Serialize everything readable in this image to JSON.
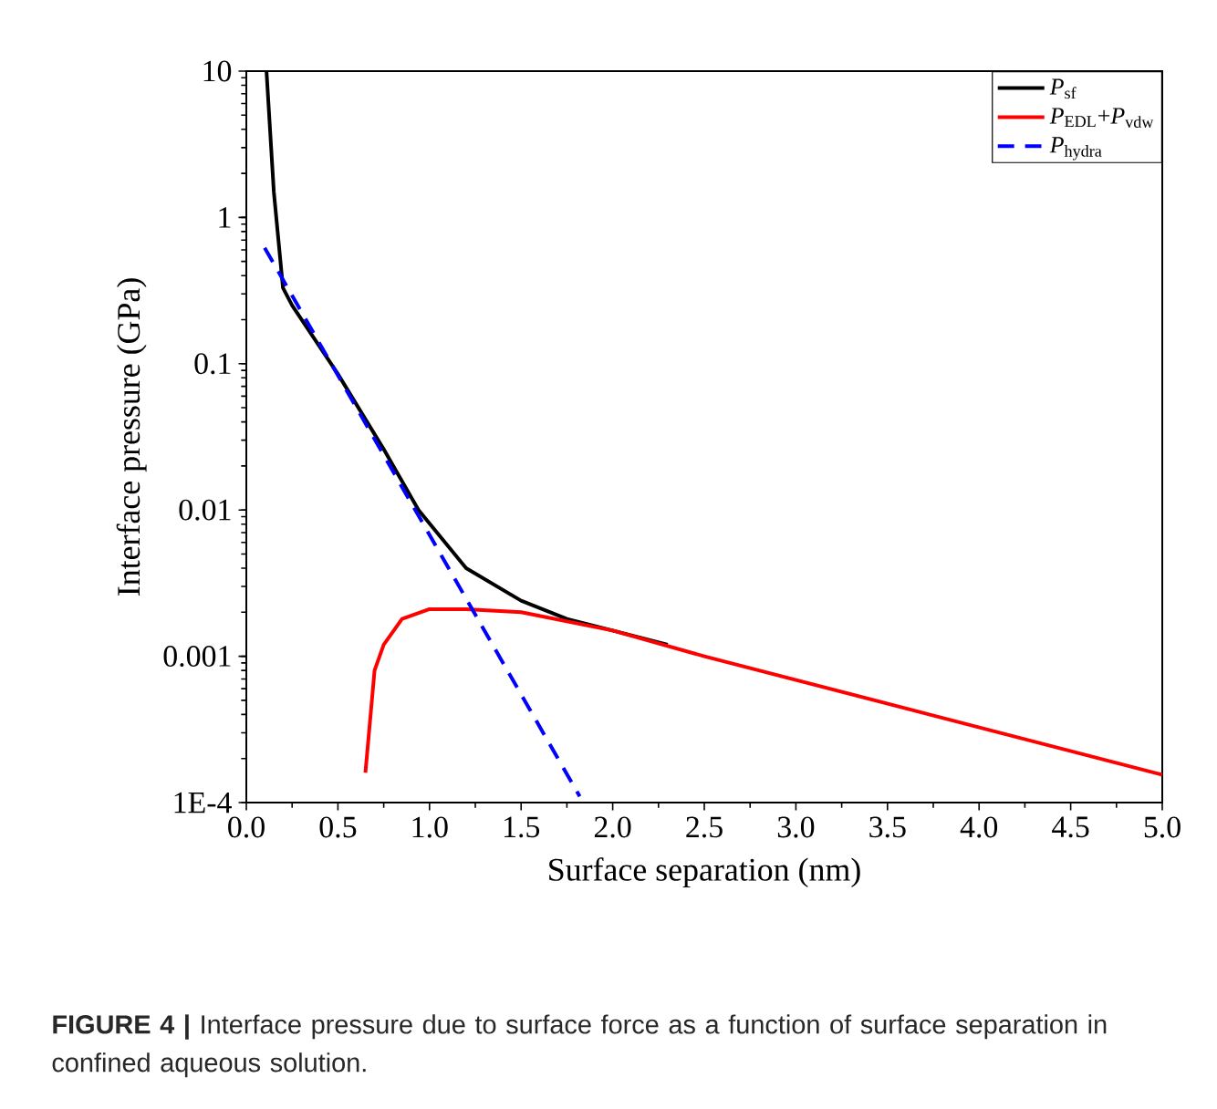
{
  "chart_data": {
    "type": "line",
    "xlabel": "Surface separation (nm)",
    "ylabel": "Interface  pressure  (GPa)",
    "series": [
      {
        "name": "*P*$_{sf}$",
        "color": "#000000",
        "line_style": "solid",
        "x": [
          0.11,
          0.15,
          0.2,
          0.25,
          0.5,
          0.75,
          0.94,
          1.2,
          1.5,
          1.75,
          2.0,
          2.3
        ],
        "values": [
          10,
          1.5,
          0.33,
          0.25,
          0.085,
          0.026,
          0.01,
          0.004,
          0.0024,
          0.0018,
          0.0015,
          0.0012
        ]
      },
      {
        "name": "*P*$_{EDL}$+*P*$_{vdw}$",
        "color": "#ff0000",
        "line_style": "solid",
        "x": [
          0.65,
          0.7,
          0.75,
          0.85,
          1.0,
          1.2,
          1.5,
          2.0,
          2.5,
          5.0
        ],
        "values": [
          0.00016,
          0.0008,
          0.0012,
          0.0018,
          0.0021,
          0.0021,
          0.002,
          0.0015,
          0.001,
          0.000155
        ]
      },
      {
        "name": "*P*$_{hydra}$",
        "color": "#0000ff",
        "line_style": "dashed",
        "x": [
          0.1,
          1.82
        ],
        "values": [
          0.62,
          0.00011
        ]
      }
    ],
    "xlim": [
      0,
      5
    ],
    "ylim": [
      0.0001,
      10
    ],
    "log": "y",
    "xticks": [
      {
        "value": 0,
        "label": "0.0"
      },
      0.5,
      {
        "value": 1,
        "label": "1.0"
      },
      1.5,
      {
        "value": 2,
        "label": "2.0"
      },
      2.5,
      {
        "value": 3,
        "label": "3.0"
      },
      3.5,
      {
        "value": 4,
        "label": "4.0"
      },
      4.5,
      {
        "value": 5,
        "label": "5.0"
      }
    ],
    "yticks": [
      {
        "value": 0.0001,
        "label": "1E-4"
      },
      0.001,
      0.01,
      0.1,
      1,
      10
    ],
    "legend": "top right",
    "grid": false,
    "annotations": [
      "**FIGURE 4 |** Interface pressure due to surface force as a function of surface separation in confined aqueous solution."
    ]
  }
}
